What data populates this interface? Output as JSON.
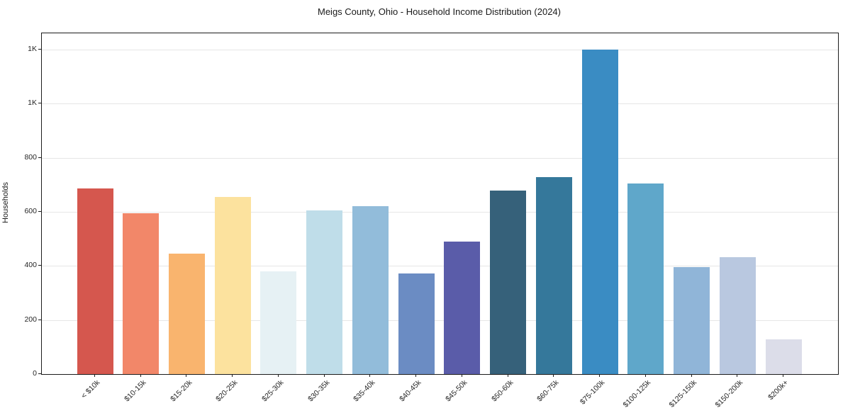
{
  "chart_data": {
    "type": "bar",
    "title": "Meigs County, Ohio - Household Income Distribution (2024)",
    "xlabel": "",
    "ylabel": "Households",
    "categories": [
      "< $10k",
      "$10-15k",
      "$15-20k",
      "$20-25k",
      "$25-30k",
      "$30-35k",
      "$35-40k",
      "$40-45k",
      "$45-50k",
      "$50-60k",
      "$60-75k",
      "$75-100k",
      "$100-125k",
      "$125-150k",
      "$150-200k",
      "$200k+"
    ],
    "values": [
      687,
      595,
      445,
      656,
      379,
      606,
      620,
      373,
      489,
      678,
      728,
      1200,
      704,
      395,
      431,
      129
    ],
    "bar_colors": [
      "#d5574e",
      "#f28769",
      "#f9b46e",
      "#fce29e",
      "#e6f1f4",
      "#bfdde9",
      "#92bcda",
      "#6b8cc3",
      "#5a5ca9",
      "#36617a",
      "#35789b",
      "#3a8cc3",
      "#5fa7ca",
      "#90b5d8",
      "#b9c8e0",
      "#dcdde9"
    ],
    "yticks": {
      "values": [
        0,
        200,
        400,
        600,
        800,
        1000,
        1200
      ],
      "labels": [
        "0",
        "200",
        "400",
        "600",
        "800",
        "1K",
        "1K"
      ]
    },
    "ylim": [
      0,
      1260
    ],
    "grid": "horizontal",
    "grid_color": "#e6e6e6",
    "background_color": "#ffffff",
    "legend": "none"
  }
}
